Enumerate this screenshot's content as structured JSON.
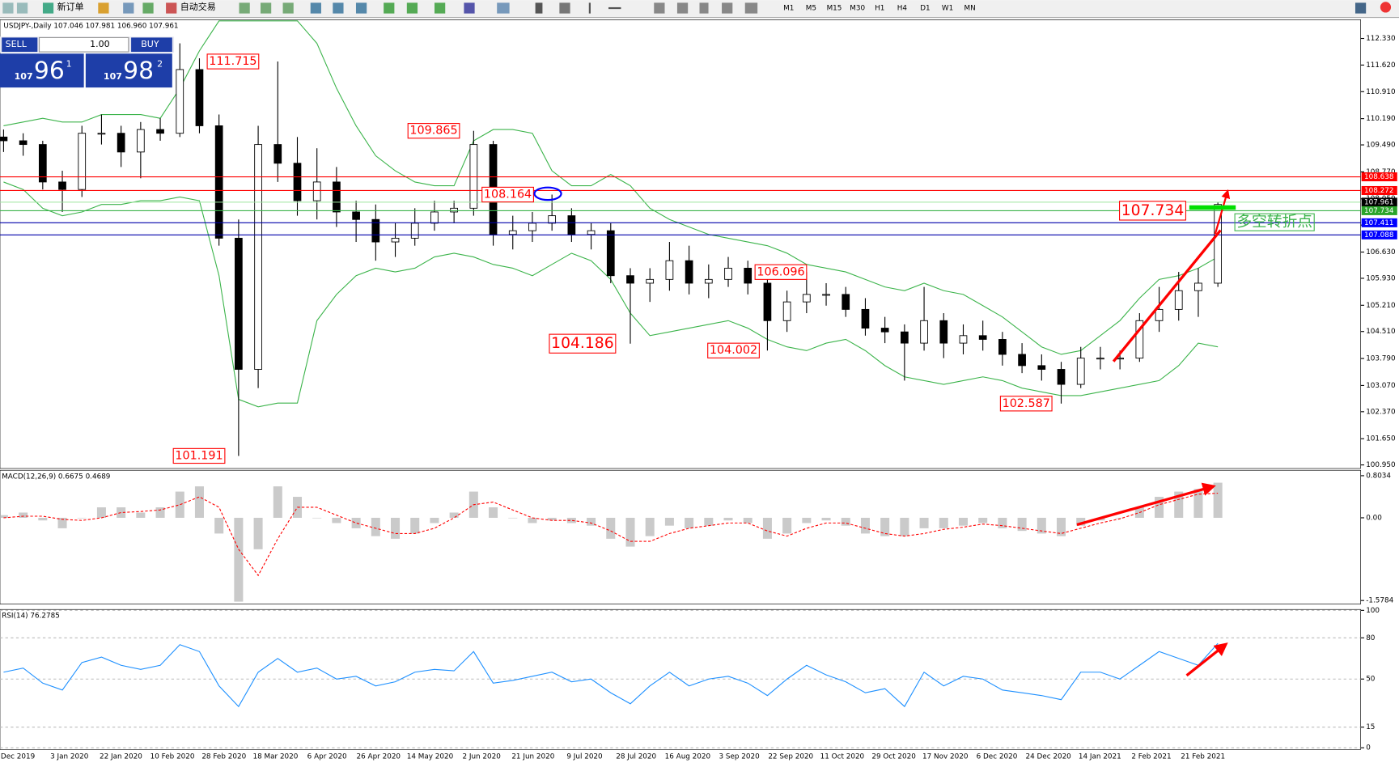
{
  "toolbar": {
    "new_order": "新订单",
    "auto_trading": "自动交易",
    "timeframes": [
      "M1",
      "M5",
      "M15",
      "M30",
      "H1",
      "H4",
      "D1",
      "W1",
      "MN"
    ]
  },
  "trade_panel": {
    "sell": "SELL",
    "buy": "BUY",
    "lots": "1.00",
    "bid_big": "107",
    "bid_pips": "96",
    "bid_frac": "1",
    "ask_big": "107",
    "ask_pips": "98",
    "ask_frac": "2"
  },
  "chart_data": [
    {
      "type": "candlestick",
      "title": "USDJPY-,Daily 107.046 107.981 106.960 107.961",
      "date_labels": [
        "Dec 2019",
        "3 Jan 2020",
        "22 Jan 2020",
        "10 Feb 2020",
        "28 Feb 2020",
        "18 Mar 2020",
        "6 Apr 2020",
        "26 Apr 2020",
        "14 May 2020",
        "2 Jun 2020",
        "21 Jun 2020",
        "9 Jul 2020",
        "28 Jul 2020",
        "16 Aug 2020",
        "3 Sep 2020",
        "22 Sep 2020",
        "11 Oct 2020",
        "29 Oct 2020",
        "17 Nov 2020",
        "6 Dec 2020",
        "24 Dec 2020",
        "14 Jan 2021",
        "2 Feb 2021",
        "21 Feb 2021"
      ],
      "ohlc": [
        [
          109.7,
          109.9,
          109.3,
          109.6
        ],
        [
          109.6,
          109.8,
          109.2,
          109.5
        ],
        [
          109.5,
          109.6,
          108.3,
          108.5
        ],
        [
          108.5,
          108.8,
          107.7,
          108.3
        ],
        [
          108.3,
          110.0,
          108.1,
          109.8
        ],
        [
          109.8,
          110.3,
          109.5,
          109.8
        ],
        [
          109.8,
          110.0,
          108.9,
          109.3
        ],
        [
          109.3,
          110.1,
          108.6,
          109.9
        ],
        [
          109.9,
          110.2,
          109.6,
          109.8
        ],
        [
          109.8,
          112.2,
          109.7,
          111.5
        ],
        [
          111.5,
          111.8,
          109.8,
          110.0
        ],
        [
          110.0,
          110.3,
          106.8,
          107.0
        ],
        [
          107.0,
          107.5,
          101.191,
          103.5
        ],
        [
          103.5,
          110.0,
          103.0,
          109.5
        ],
        [
          109.5,
          111.715,
          108.5,
          109.0
        ],
        [
          109.0,
          109.7,
          107.6,
          108.0
        ],
        [
          108.0,
          109.4,
          107.5,
          108.5
        ],
        [
          108.5,
          108.9,
          107.3,
          107.7
        ],
        [
          107.7,
          108.0,
          106.9,
          107.5
        ],
        [
          107.5,
          107.9,
          106.4,
          106.9
        ],
        [
          106.9,
          107.4,
          106.5,
          107.0
        ],
        [
          107.0,
          107.8,
          106.8,
          107.4
        ],
        [
          107.4,
          108.0,
          107.2,
          107.7
        ],
        [
          107.7,
          108.0,
          107.4,
          107.8
        ],
        [
          107.8,
          109.865,
          107.6,
          109.5
        ],
        [
          109.5,
          109.6,
          106.8,
          107.1
        ],
        [
          107.1,
          107.6,
          106.7,
          107.2
        ],
        [
          107.2,
          107.7,
          106.9,
          107.4
        ],
        [
          107.4,
          108.164,
          107.2,
          107.6
        ],
        [
          107.6,
          107.8,
          106.9,
          107.1
        ],
        [
          107.1,
          107.4,
          106.7,
          107.2
        ],
        [
          107.2,
          107.4,
          105.8,
          106.0
        ],
        [
          106.0,
          106.2,
          104.186,
          105.8
        ],
        [
          105.8,
          106.2,
          105.3,
          105.9
        ],
        [
          105.9,
          106.9,
          105.6,
          106.4
        ],
        [
          106.4,
          106.8,
          105.5,
          105.8
        ],
        [
          105.8,
          106.3,
          105.4,
          105.9
        ],
        [
          105.9,
          106.5,
          105.7,
          106.2
        ],
        [
          106.2,
          106.4,
          105.5,
          105.8
        ],
        [
          105.8,
          106.1,
          104.002,
          104.8
        ],
        [
          104.8,
          105.6,
          104.5,
          105.3
        ],
        [
          105.3,
          106.096,
          105.0,
          105.5
        ],
        [
          105.5,
          105.8,
          105.2,
          105.5
        ],
        [
          105.5,
          105.7,
          104.9,
          105.1
        ],
        [
          105.1,
          105.4,
          104.4,
          104.6
        ],
        [
          104.6,
          104.9,
          104.2,
          104.5
        ],
        [
          104.5,
          104.7,
          103.2,
          104.2
        ],
        [
          104.2,
          105.7,
          104.0,
          104.8
        ],
        [
          104.8,
          105.0,
          103.8,
          104.2
        ],
        [
          104.2,
          104.7,
          103.9,
          104.4
        ],
        [
          104.4,
          104.8,
          104.0,
          104.3
        ],
        [
          104.3,
          104.5,
          103.6,
          103.9
        ],
        [
          103.9,
          104.2,
          103.4,
          103.6
        ],
        [
          103.6,
          103.9,
          103.2,
          103.5
        ],
        [
          103.5,
          103.7,
          102.587,
          103.1
        ],
        [
          103.1,
          104.1,
          103.0,
          103.8
        ],
        [
          103.8,
          104.1,
          103.5,
          103.8
        ],
        [
          103.8,
          104.0,
          103.5,
          103.8
        ],
        [
          103.8,
          105.0,
          103.7,
          104.8
        ],
        [
          104.8,
          105.7,
          104.5,
          105.1
        ],
        [
          105.1,
          106.1,
          104.8,
          105.6
        ],
        [
          105.6,
          106.2,
          104.9,
          105.8
        ],
        [
          105.8,
          107.961,
          105.7,
          107.9
        ]
      ],
      "bollinger_upper": [
        110.0,
        110.1,
        110.2,
        110.1,
        110.1,
        110.3,
        110.3,
        110.3,
        110.2,
        111.0,
        112.0,
        112.8,
        112.8,
        112.8,
        112.8,
        112.8,
        112.2,
        111.0,
        110.0,
        109.2,
        108.8,
        108.5,
        108.4,
        108.4,
        109.6,
        109.9,
        109.9,
        109.8,
        108.8,
        108.4,
        108.4,
        108.7,
        108.4,
        107.8,
        107.5,
        107.3,
        107.1,
        107.0,
        106.9,
        106.8,
        106.6,
        106.3,
        106.2,
        106.1,
        105.9,
        105.7,
        105.6,
        105.8,
        105.6,
        105.5,
        105.2,
        104.9,
        104.5,
        104.1,
        103.9,
        104.0,
        104.4,
        104.8,
        105.4,
        105.9,
        106.0,
        106.2,
        106.5
      ],
      "bollinger_lower": [
        108.5,
        108.3,
        107.8,
        107.6,
        107.7,
        107.9,
        107.9,
        108.0,
        108.0,
        108.1,
        108.0,
        106.0,
        102.7,
        102.5,
        102.6,
        102.6,
        104.8,
        105.5,
        106.0,
        106.2,
        106.1,
        106.2,
        106.5,
        106.6,
        106.5,
        106.3,
        106.2,
        106.0,
        106.3,
        106.6,
        106.4,
        105.9,
        105.0,
        104.4,
        104.5,
        104.6,
        104.7,
        104.8,
        104.6,
        104.3,
        104.1,
        104.0,
        104.2,
        104.3,
        104.0,
        103.6,
        103.3,
        103.2,
        103.1,
        103.2,
        103.3,
        103.2,
        103.0,
        102.9,
        102.8,
        102.8,
        102.9,
        103.0,
        103.1,
        103.2,
        103.6,
        104.2,
        104.1
      ],
      "band_color": "#3cb44b",
      "ylim": [
        100.855,
        112.83
      ],
      "yticks": [
        {
          "value": 112.33,
          "label": "112.330"
        },
        {
          "value": 111.62,
          "label": "111.620"
        },
        {
          "value": 110.91,
          "label": "110.910"
        },
        {
          "value": 110.19,
          "label": "110.190"
        },
        {
          "value": 109.49,
          "label": "109.490"
        },
        {
          "value": 108.77,
          "label": "108.770"
        },
        {
          "value": 108.05,
          "label": "108.050"
        },
        {
          "value": 107.35,
          "label": "107.350"
        },
        {
          "value": 106.63,
          "label": "106.630"
        },
        {
          "value": 105.93,
          "label": "105.930"
        },
        {
          "value": 105.21,
          "label": "105.210"
        },
        {
          "value": 104.51,
          "label": "104.510"
        },
        {
          "value": 103.79,
          "label": "103.790"
        },
        {
          "value": 103.07,
          "label": "103.070"
        },
        {
          "value": 102.37,
          "label": "102.370"
        },
        {
          "value": 101.65,
          "label": "101.650"
        },
        {
          "value": 100.95,
          "label": "100.950"
        }
      ],
      "levels": [
        {
          "value": 108.638,
          "line_color": "#ff0000",
          "tag_color": "#ff0000"
        },
        {
          "value": 108.272,
          "line_color": "#ff0000",
          "tag_color": "#ff0000"
        },
        {
          "value": 107.961,
          "line_color": "#9ee59e",
          "tag_color": "#000000"
        },
        {
          "value": 107.734,
          "line_color": "#3cb44b",
          "tag_color": "#2aa52a"
        },
        {
          "value": 107.411,
          "line_color": "#0000aa",
          "tag_color": "#0000ff"
        },
        {
          "value": 107.088,
          "line_color": "#0000aa",
          "tag_color": "#0000ff"
        }
      ],
      "annotations": [
        111.715,
        109.865,
        108.164,
        106.096,
        104.186,
        104.002,
        102.587,
        101.191,
        107.734
      ],
      "note": "多空转折点"
    },
    {
      "type": "macd",
      "title": "MACD(12,26,9) 0.6675 0.4689",
      "histogram": [
        0.05,
        0.1,
        -0.05,
        -0.2,
        0.0,
        0.2,
        0.2,
        0.1,
        0.2,
        0.5,
        0.6,
        -0.3,
        -1.6,
        -0.6,
        0.6,
        0.4,
        0.0,
        -0.1,
        -0.2,
        -0.35,
        -0.4,
        -0.3,
        -0.1,
        0.1,
        0.5,
        0.2,
        0.0,
        -0.1,
        -0.05,
        -0.1,
        -0.15,
        -0.4,
        -0.55,
        -0.35,
        -0.15,
        -0.2,
        -0.15,
        -0.05,
        -0.1,
        -0.4,
        -0.3,
        -0.1,
        -0.05,
        -0.15,
        -0.3,
        -0.35,
        -0.35,
        -0.2,
        -0.2,
        -0.15,
        -0.1,
        -0.2,
        -0.25,
        -0.3,
        -0.35,
        -0.15,
        -0.05,
        0.0,
        0.2,
        0.4,
        0.5,
        0.55,
        0.67
      ],
      "signal": [
        0.0,
        0.03,
        0.03,
        -0.03,
        -0.05,
        0.0,
        0.1,
        0.12,
        0.15,
        0.25,
        0.4,
        0.2,
        -0.6,
        -1.1,
        -0.4,
        0.2,
        0.2,
        0.05,
        -0.1,
        -0.2,
        -0.3,
        -0.3,
        -0.2,
        0.0,
        0.25,
        0.3,
        0.15,
        0.0,
        -0.05,
        -0.05,
        -0.1,
        -0.25,
        -0.45,
        -0.45,
        -0.3,
        -0.2,
        -0.15,
        -0.1,
        -0.1,
        -0.25,
        -0.35,
        -0.2,
        -0.1,
        -0.1,
        -0.2,
        -0.3,
        -0.35,
        -0.3,
        -0.22,
        -0.18,
        -0.12,
        -0.15,
        -0.2,
        -0.25,
        -0.3,
        -0.2,
        -0.1,
        -0.02,
        0.1,
        0.25,
        0.35,
        0.45,
        0.47
      ],
      "histogram_color": "#b4b4b4",
      "signal_color": "#ff0000",
      "ylim": [
        -1.647,
        0.907
      ],
      "yticks": [
        0.8034,
        {
          "value": 0,
          "label": "0.00"
        },
        -1.5784
      ]
    },
    {
      "type": "line",
      "title": "RSI(14) 76.2785",
      "values": [
        55,
        58,
        47,
        42,
        62,
        66,
        60,
        57,
        60,
        75,
        70,
        45,
        30,
        55,
        65,
        55,
        58,
        50,
        52,
        45,
        48,
        55,
        57,
        56,
        70,
        47,
        49,
        52,
        55,
        48,
        50,
        40,
        32,
        45,
        55,
        45,
        50,
        52,
        47,
        38,
        50,
        60,
        53,
        48,
        40,
        43,
        30,
        55,
        45,
        52,
        50,
        42,
        40,
        38,
        35,
        55,
        55,
        50,
        60,
        70,
        65,
        60,
        76
      ],
      "color": "#1e90ff",
      "ylim": [
        0,
        100
      ],
      "yticks": [
        100,
        80,
        50,
        15,
        0
      ]
    }
  ]
}
